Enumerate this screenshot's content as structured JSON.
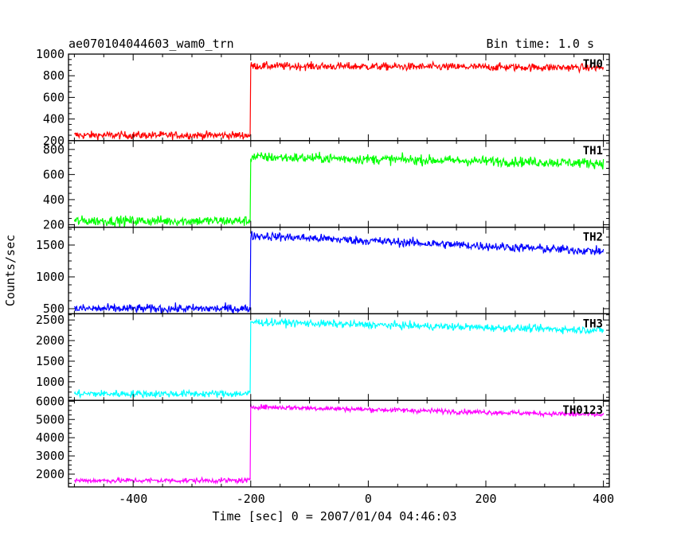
{
  "chart_data": {
    "type": "line",
    "title": "ae070104044603_wam0_trn",
    "bin_time_label": "Bin time: 1.0 s",
    "xlabel": "Time [sec] 0 = 2007/01/04 04:46:03",
    "ylabel": "Counts/sec",
    "xlim": [
      -510,
      410
    ],
    "xticks": [
      -400,
      -200,
      0,
      200,
      400
    ],
    "x_range": [
      -500,
      400
    ],
    "step_time": -200,
    "grid": false,
    "legend": "none",
    "panels": [
      {
        "name": "TH0",
        "color": "#ff0000",
        "ylim": [
          200,
          1000
        ],
        "yticks": [
          200,
          400,
          600,
          800,
          1000
        ],
        "pre_level": 250,
        "post_level_start": 890,
        "post_level_end": 875,
        "noise": 18
      },
      {
        "name": "TH1",
        "color": "#00ff00",
        "ylim": [
          180,
          870
        ],
        "yticks": [
          200,
          400,
          600,
          800
        ],
        "pre_level": 230,
        "post_level_start": 740,
        "post_level_end": 690,
        "noise": 20
      },
      {
        "name": "TH2",
        "color": "#0000ff",
        "ylim": [
          420,
          1780
        ],
        "yticks": [
          500,
          1000,
          1500
        ],
        "pre_level": 500,
        "post_level_start": 1650,
        "post_level_end": 1400,
        "noise": 35
      },
      {
        "name": "TH3",
        "color": "#00ffff",
        "ylim": [
          550,
          2650
        ],
        "yticks": [
          1000,
          1500,
          2000,
          2500
        ],
        "pre_level": 710,
        "post_level_start": 2450,
        "post_level_end": 2250,
        "noise": 45
      },
      {
        "name": "TH0123",
        "color": "#ff00ff",
        "ylim": [
          1300,
          6050
        ],
        "yticks": [
          2000,
          3000,
          4000,
          5000,
          6000
        ],
        "pre_level": 1650,
        "post_level_start": 5700,
        "post_level_end": 5250,
        "noise": 70
      }
    ]
  }
}
